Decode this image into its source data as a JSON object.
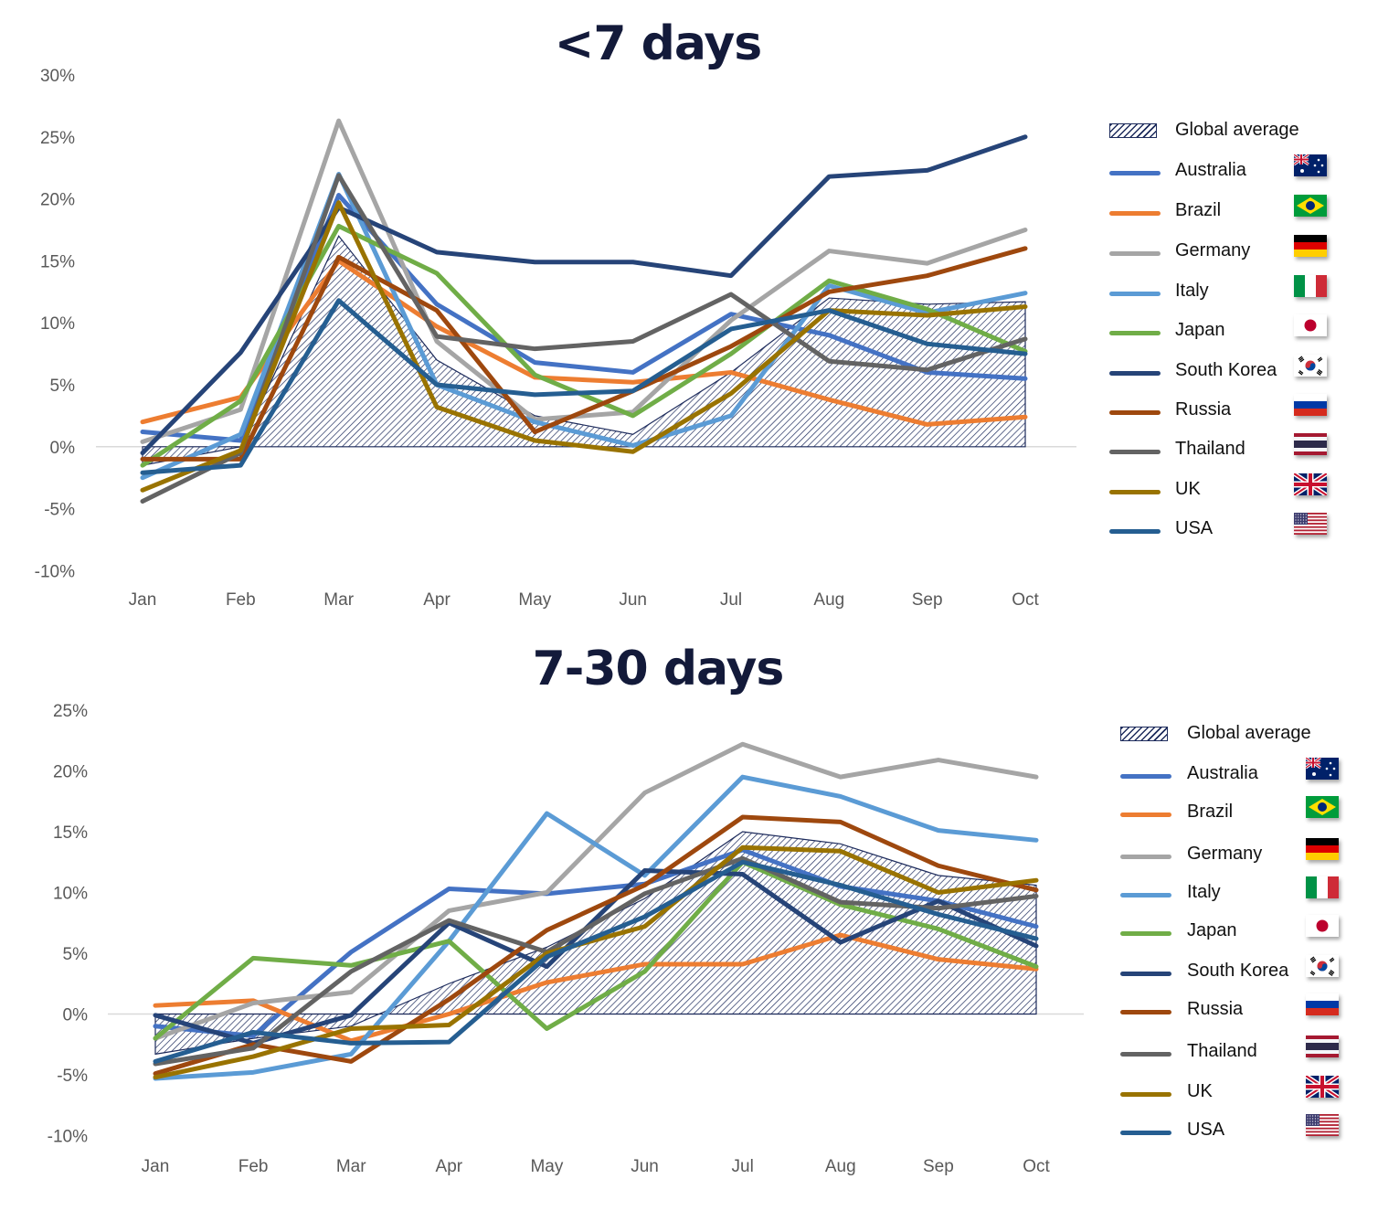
{
  "chart_data": [
    {
      "type": "line",
      "title": "<7 days",
      "categories": [
        "Jan",
        "Feb",
        "Mar",
        "Apr",
        "May",
        "Jun",
        "Jul",
        "Aug",
        "Sep",
        "Oct"
      ],
      "y_ticks": [
        "30%",
        "25%",
        "20%",
        "15%",
        "10%",
        "5%",
        "0%",
        "-5%",
        "-10%"
      ],
      "ylim": [
        -10,
        30
      ],
      "grid": false,
      "legend_position": "right",
      "area": {
        "name": "Global average",
        "values": [
          -1.5,
          0.0,
          17.0,
          7.0,
          2.5,
          1.0,
          6.0,
          12.0,
          11.5,
          11.7
        ]
      },
      "series": [
        {
          "name": "Australia",
          "color": "#4472c4",
          "flag": "au",
          "values": [
            1.2,
            0.5,
            20.3,
            11.5,
            6.8,
            6.0,
            10.7,
            9.0,
            6.0,
            5.5
          ]
        },
        {
          "name": "Brazil",
          "color": "#ed7d31",
          "flag": "br",
          "values": [
            2.0,
            4.0,
            15.0,
            9.7,
            5.6,
            5.2,
            6.0,
            3.8,
            1.8,
            2.4
          ]
        },
        {
          "name": "Germany",
          "color": "#a5a5a5",
          "flag": "de",
          "values": [
            0.4,
            3.0,
            26.3,
            8.5,
            2.2,
            2.8,
            10.2,
            15.8,
            14.8,
            17.5
          ]
        },
        {
          "name": "Italy",
          "color": "#5b9bd5",
          "flag": "it",
          "values": [
            -2.5,
            1.0,
            22.0,
            5.0,
            2.0,
            0.1,
            2.5,
            13.0,
            10.8,
            12.4
          ]
        },
        {
          "name": "Japan",
          "color": "#70ad47",
          "flag": "jp",
          "values": [
            -1.5,
            3.7,
            17.8,
            14.0,
            5.8,
            2.5,
            7.5,
            13.4,
            11.1,
            7.7
          ]
        },
        {
          "name": "South Korea",
          "color": "#264478",
          "flag": "kr",
          "values": [
            -0.5,
            7.6,
            19.3,
            15.7,
            14.9,
            14.9,
            13.8,
            21.8,
            22.3,
            25.0
          ]
        },
        {
          "name": "Russia",
          "color": "#9e480e",
          "flag": "ru",
          "values": [
            -1.0,
            -1.0,
            15.3,
            11.0,
            1.2,
            4.5,
            8.1,
            12.5,
            13.8,
            16.0
          ]
        },
        {
          "name": "Thailand",
          "color": "#636363",
          "flag": "th",
          "values": [
            -4.4,
            -0.5,
            21.9,
            8.9,
            7.9,
            8.5,
            12.3,
            6.9,
            6.2,
            8.7
          ]
        },
        {
          "name": "UK",
          "color": "#997300",
          "flag": "gb",
          "values": [
            -3.5,
            -0.3,
            19.7,
            3.2,
            0.5,
            -0.4,
            4.3,
            11.0,
            10.6,
            11.3
          ]
        },
        {
          "name": "USA",
          "color": "#255e91",
          "flag": "us",
          "values": [
            -2.1,
            -1.5,
            11.8,
            5.0,
            4.2,
            4.5,
            9.5,
            11.0,
            8.3,
            7.5
          ]
        }
      ]
    },
    {
      "type": "line",
      "title": "7-30 days",
      "categories": [
        "Jan",
        "Feb",
        "Mar",
        "Apr",
        "May",
        "Jun",
        "Jul",
        "Aug",
        "Sep",
        "Oct"
      ],
      "y_ticks": [
        "25%",
        "20%",
        "15%",
        "10%",
        "5%",
        "0%",
        "-5%",
        "-10%"
      ],
      "ylim": [
        -10,
        25
      ],
      "grid": false,
      "legend_position": "right",
      "area": {
        "name": "Global average",
        "values": [
          -3.3,
          -2.0,
          -1.0,
          2.5,
          5.5,
          9.5,
          15.0,
          14.0,
          11.4,
          10.6
        ]
      },
      "series": [
        {
          "name": "Australia",
          "color": "#4472c4",
          "flag": "au",
          "values": [
            -1.0,
            -1.8,
            5.1,
            10.3,
            9.9,
            10.7,
            13.5,
            10.5,
            9.3,
            7.2
          ]
        },
        {
          "name": "Brazil",
          "color": "#ed7d31",
          "flag": "br",
          "values": [
            0.7,
            1.1,
            -2.2,
            0.0,
            2.6,
            4.1,
            4.1,
            6.5,
            4.5,
            3.7
          ]
        },
        {
          "name": "Germany",
          "color": "#a5a5a5",
          "flag": "de",
          "values": [
            -2.0,
            0.9,
            1.8,
            8.5,
            10.0,
            18.2,
            22.2,
            19.5,
            20.9,
            19.5
          ]
        },
        {
          "name": "Italy",
          "color": "#5b9bd5",
          "flag": "it",
          "values": [
            -5.3,
            -4.8,
            -3.3,
            6.0,
            16.5,
            11.4,
            19.5,
            17.9,
            15.1,
            14.3
          ]
        },
        {
          "name": "Japan",
          "color": "#70ad47",
          "flag": "jp",
          "values": [
            -2.0,
            4.6,
            4.0,
            6.0,
            -1.2,
            3.5,
            12.5,
            9.0,
            7.0,
            3.9
          ]
        },
        {
          "name": "South Korea",
          "color": "#264478",
          "flag": "kr",
          "values": [
            -0.1,
            -2.4,
            -0.1,
            7.5,
            3.9,
            11.8,
            11.5,
            5.9,
            9.3,
            5.6
          ]
        },
        {
          "name": "Russia",
          "color": "#9e480e",
          "flag": "ru",
          "values": [
            -4.9,
            -2.5,
            -3.9,
            1.2,
            6.9,
            10.6,
            16.2,
            15.8,
            12.2,
            10.2
          ]
        },
        {
          "name": "Thailand",
          "color": "#636363",
          "flag": "th",
          "values": [
            -4.1,
            -2.8,
            3.5,
            7.7,
            5.1,
            9.9,
            12.8,
            9.2,
            8.7,
            9.7
          ]
        },
        {
          "name": "UK",
          "color": "#997300",
          "flag": "gb",
          "values": [
            -5.2,
            -3.5,
            -1.2,
            -0.9,
            5.0,
            7.2,
            13.7,
            13.4,
            10.0,
            11.0
          ]
        },
        {
          "name": "USA",
          "color": "#255e91",
          "flag": "us",
          "values": [
            -3.9,
            -1.5,
            -2.4,
            -2.3,
            4.7,
            8.0,
            12.5,
            10.6,
            8.2,
            6.2
          ]
        }
      ]
    }
  ]
}
